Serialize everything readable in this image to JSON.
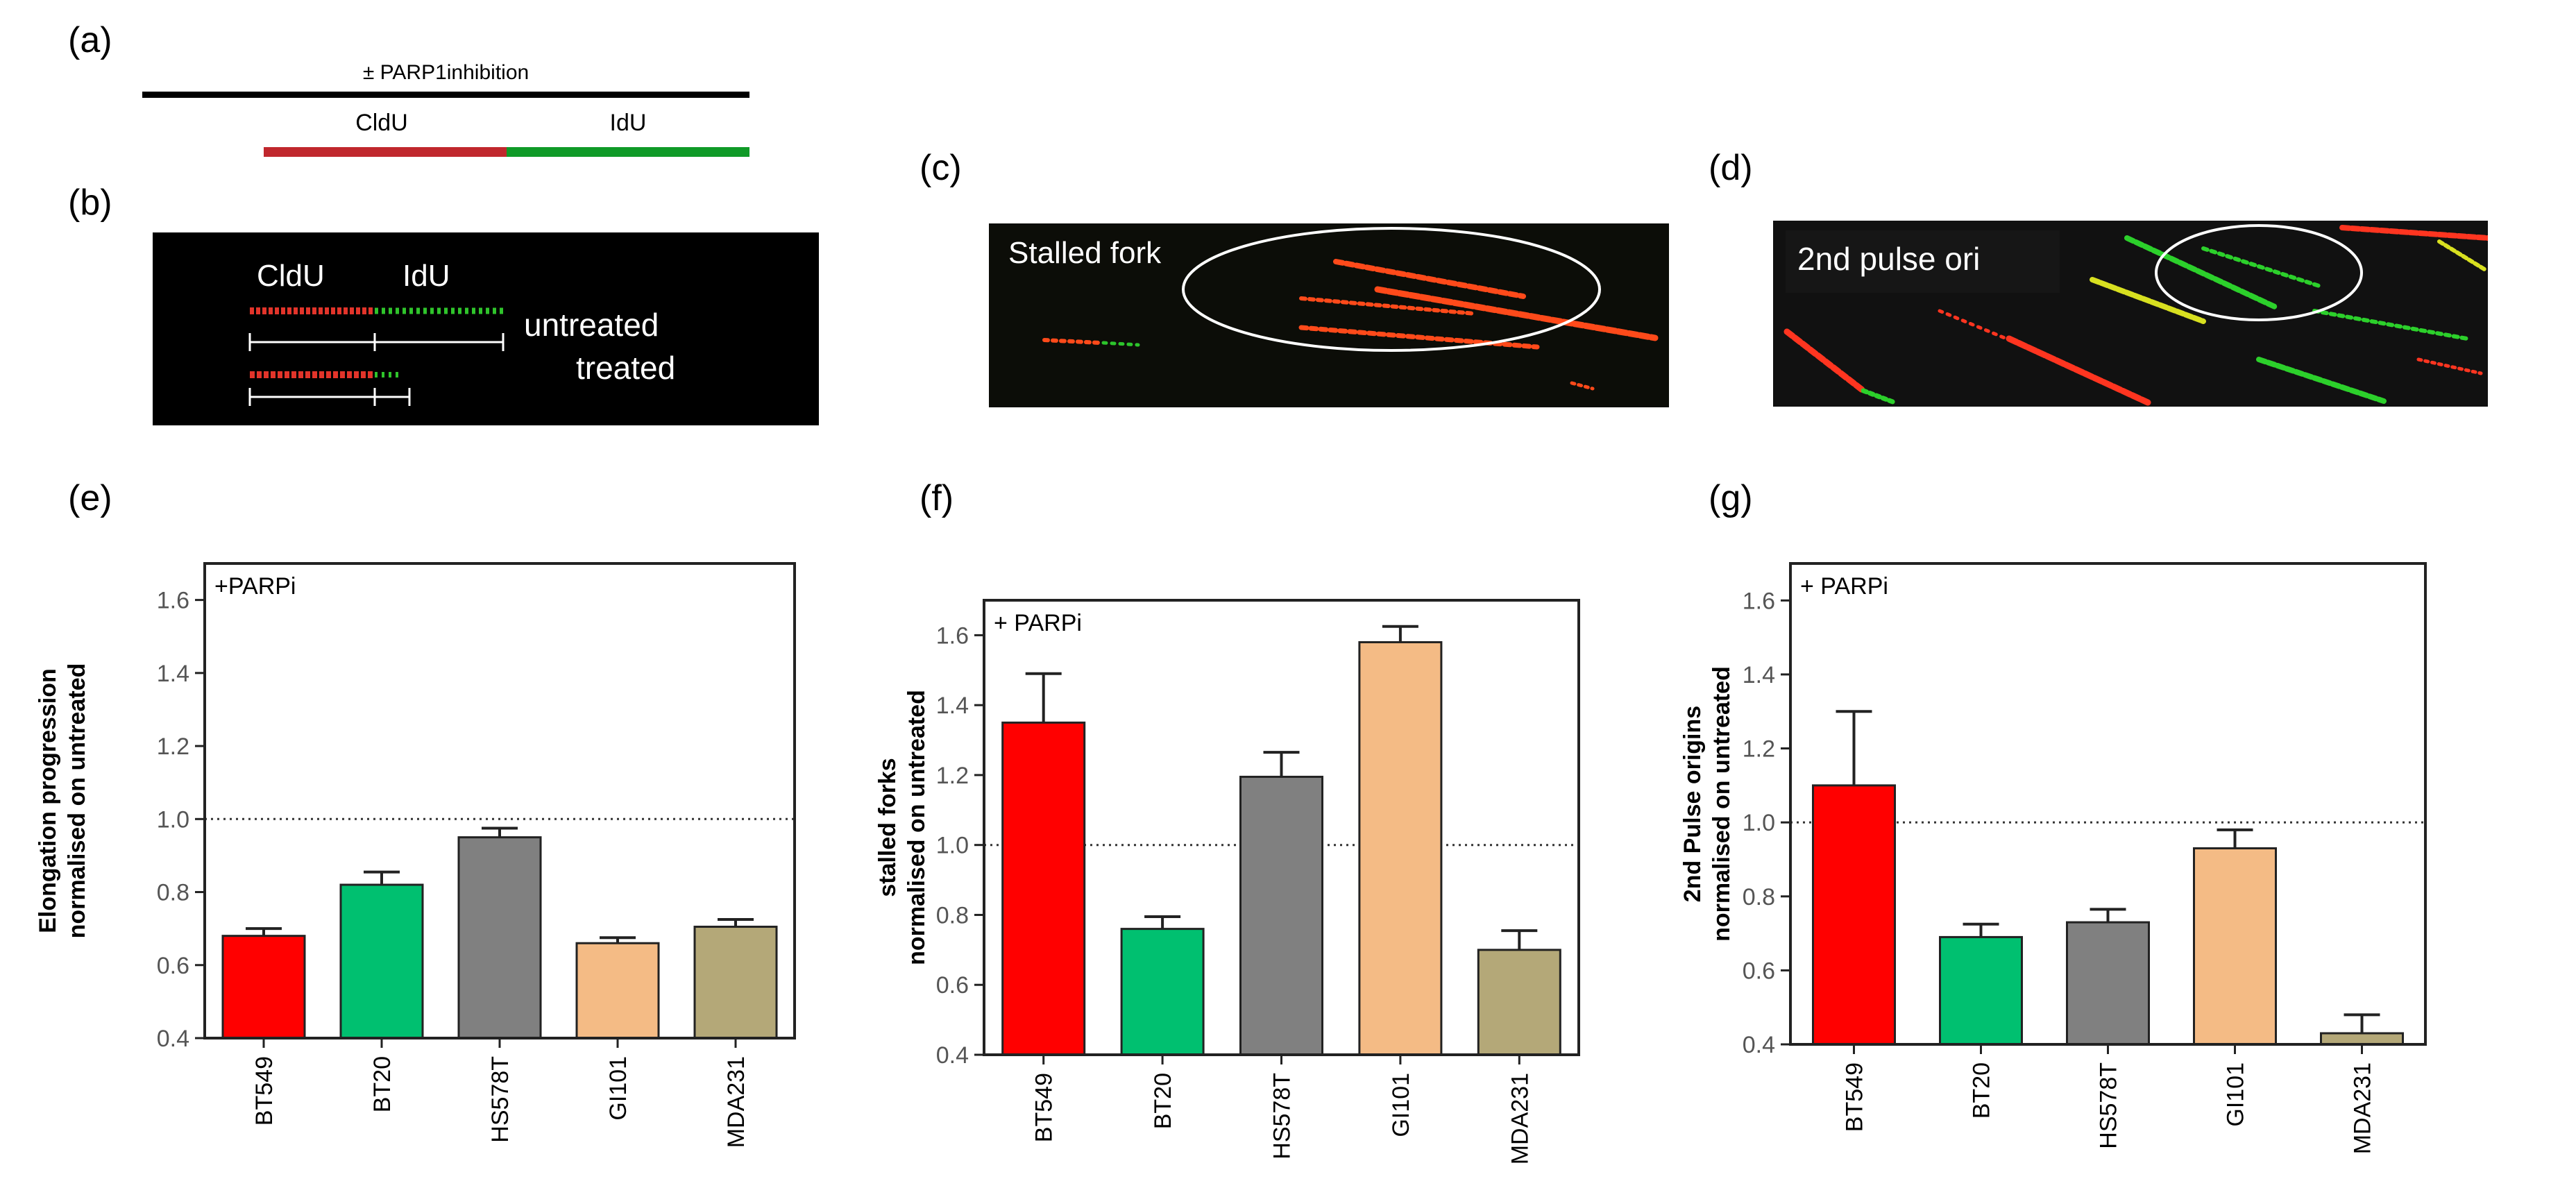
{
  "panel_labels": {
    "a": "(a)",
    "b": "(b)",
    "c": "(c)",
    "d": "(d)",
    "e": "(e)",
    "f": "(f)",
    "g": "(g)"
  },
  "colors": {
    "red": "#ff0000",
    "green": "#00c070",
    "gray": "#808080",
    "peach": "#f4bb85",
    "khaki": "#b4a878",
    "cldu": "#c0272d",
    "idu": "#0f9a27"
  },
  "schematic": {
    "inhibition_label": "± PARP1inhibition",
    "cldu_label": "CldU",
    "idu_label": "IdU"
  },
  "micrograph_b": {
    "cldu_label": "CldU",
    "idu_label": "IdU",
    "untreated_label": "untreated",
    "treated_label": "treated"
  },
  "micrograph_c": {
    "label": "Stalled fork"
  },
  "micrograph_d": {
    "label": "2nd pulse ori"
  },
  "chart_data": [
    {
      "id": "e",
      "type": "bar",
      "title": "",
      "annotation": "+PARPi",
      "ylabel_lines": [
        "Elongation progression",
        "normalised on untreated"
      ],
      "xlabel": "",
      "categories": [
        "BT549",
        "BT20",
        "HS578T",
        "GI101",
        "MDA231"
      ],
      "values": [
        0.68,
        0.82,
        0.95,
        0.66,
        0.705
      ],
      "errors": [
        0.02,
        0.035,
        0.025,
        0.015,
        0.02
      ],
      "bar_colors": [
        "#ff0000",
        "#00c070",
        "#808080",
        "#f4bb85",
        "#b4a878"
      ],
      "ylim": [
        0.4,
        1.7
      ],
      "yticks": [
        0.4,
        0.6,
        0.8,
        1.0,
        1.2,
        1.4,
        1.6
      ],
      "ytick_labels": [
        "0.4",
        "0.6",
        "0.8",
        "1.0",
        "1.2",
        "1.4",
        "1.6"
      ],
      "reference_line": 1.0
    },
    {
      "id": "f",
      "type": "bar",
      "title": "",
      "annotation": "+ PARPi",
      "ylabel_lines": [
        "stalled forks",
        "normalised on untreated"
      ],
      "xlabel": "",
      "categories": [
        "BT549",
        "BT20",
        "HS578T",
        "GI101",
        "MDA231"
      ],
      "values": [
        1.35,
        0.76,
        1.195,
        1.58,
        0.7
      ],
      "errors": [
        0.14,
        0.035,
        0.07,
        0.045,
        0.055
      ],
      "bar_colors": [
        "#ff0000",
        "#00c070",
        "#808080",
        "#f4bb85",
        "#b4a878"
      ],
      "ylim": [
        0.4,
        1.7
      ],
      "yticks": [
        0.4,
        0.6,
        0.8,
        1.0,
        1.2,
        1.4,
        1.6
      ],
      "ytick_labels": [
        "0.4",
        "0.6",
        "0.8",
        "1.0",
        "1.2",
        "1.4",
        "1.6"
      ],
      "reference_line": 1.0
    },
    {
      "id": "g",
      "type": "bar",
      "title": "",
      "annotation": "+ PARPi",
      "ylabel_lines": [
        "2nd Pulse origins",
        "normalised on untreated"
      ],
      "xlabel": "",
      "categories": [
        "BT549",
        "BT20",
        "HS578T",
        "GI101",
        "MDA231"
      ],
      "values": [
        1.1,
        0.69,
        0.73,
        0.93,
        0.43
      ],
      "errors": [
        0.2,
        0.035,
        0.035,
        0.05,
        0.05
      ],
      "bar_colors": [
        "#ff0000",
        "#00c070",
        "#808080",
        "#f4bb85",
        "#b4a878"
      ],
      "ylim": [
        0.4,
        1.7
      ],
      "yticks": [
        0.4,
        0.6,
        0.8,
        1.0,
        1.2,
        1.4,
        1.6
      ],
      "ytick_labels": [
        "0.4",
        "0.6",
        "0.8",
        "1.0",
        "1.2",
        "1.4",
        "1.6"
      ],
      "reference_line": 1.0
    }
  ]
}
